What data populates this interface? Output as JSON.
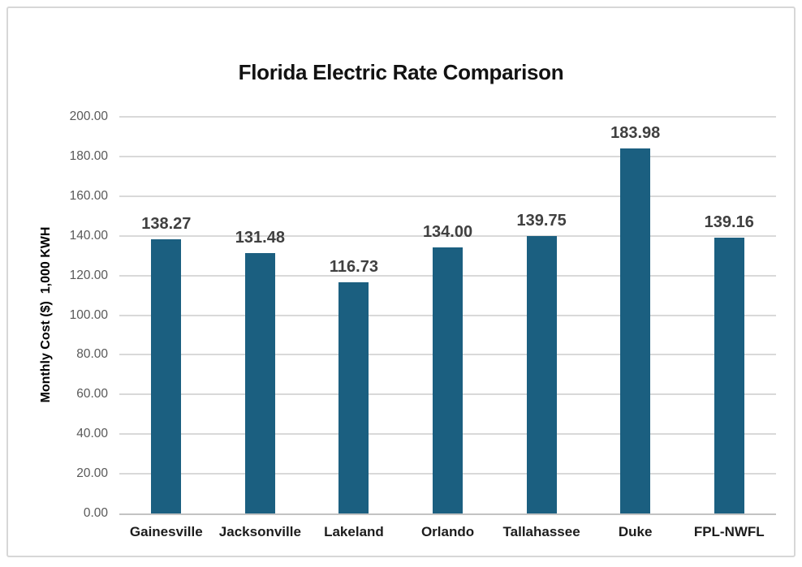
{
  "chart_data": {
    "type": "bar",
    "title": "Florida Electric Rate Comparison",
    "xlabel": "",
    "ylabel": "Monthly Cost ($)  1,000 KWH",
    "categories": [
      "Gainesville",
      "Jacksonville",
      "Lakeland",
      "Orlando",
      "Tallahassee",
      "Duke",
      "FPL-NWFL"
    ],
    "values": [
      138.27,
      131.48,
      116.73,
      134.0,
      139.75,
      183.98,
      139.16
    ],
    "value_labels": [
      "138.27",
      "131.48",
      "116.73",
      "134.00",
      "139.75",
      "183.98",
      "139.16"
    ],
    "ylim": [
      0,
      200
    ],
    "ytick_step": 20,
    "ytick_labels": [
      "0.00",
      "20.00",
      "40.00",
      "60.00",
      "80.00",
      "100.00",
      "120.00",
      "140.00",
      "160.00",
      "180.00",
      "200.00"
    ],
    "grid": true,
    "legend": "none",
    "colors": {
      "bar": "#1b5f80",
      "title": "#121212",
      "value_label": "#404040",
      "tick_label": "#595959",
      "category_label": "#1c1c1c",
      "gridline": "#d9d9d9",
      "baseline": "#c3c3c3",
      "frame_border": "#d7d7d7",
      "background": "#ffffff"
    }
  }
}
